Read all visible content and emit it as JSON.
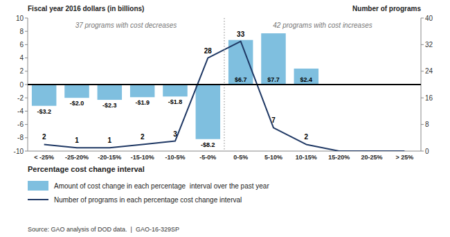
{
  "chart_data": {
    "type": "bar",
    "ylabel": "Fiscal year 2016 dollars (in billions)",
    "y2label": "Number of programs",
    "xlabel": "Percentage cost change interval",
    "annotations": [
      "37 programs with cost decreases",
      "42 programs with cost increases"
    ],
    "source": "Source: GAO analysis of DOD data.  |  GAO-16-329SP",
    "categories": [
      "< -25%",
      "-25-20%",
      "-20-15%",
      "-15-10%",
      "-10-5%",
      "-5-0%",
      "0-5%",
      "5-10%",
      "10-15%",
      "15-20%",
      "20-25%",
      "> 25%"
    ],
    "series": [
      {
        "name": "Amount of cost change in each percentage  interval over the past year",
        "type": "bar",
        "color": "#7fbfdf",
        "values": [
          -3.2,
          -2.0,
          -2.3,
          -1.9,
          -1.8,
          -8.2,
          6.7,
          7.7,
          2.4,
          0,
          0,
          0
        ],
        "value_labels": [
          "-$3.2",
          "-$2.0",
          "-$2.3",
          "-$1.9",
          "-$1.8",
          "-$8.2",
          "$6.7",
          "$7.7",
          "$2.4",
          null,
          null,
          null
        ]
      },
      {
        "name": "Number of programs in each percentage cost change interval",
        "type": "line",
        "axis": "y2",
        "color": "#1f3864",
        "values": [
          2,
          1,
          1,
          2,
          3,
          28,
          33,
          7,
          2,
          0,
          0,
          0
        ],
        "value_labels": [
          "2",
          "1",
          "1",
          "2",
          "3",
          "28",
          "33",
          "7",
          "2",
          null,
          null,
          null
        ]
      }
    ],
    "ylim": [
      -10,
      10
    ],
    "yticks": [
      -10,
      -8,
      -6,
      -4,
      -2,
      0,
      2,
      4,
      6,
      8,
      10
    ],
    "y2lim": [
      0,
      40
    ],
    "y2ticks": [
      0,
      8,
      16,
      24,
      32,
      40
    ],
    "data_labels": true,
    "grid": false,
    "legend": "bottom"
  }
}
